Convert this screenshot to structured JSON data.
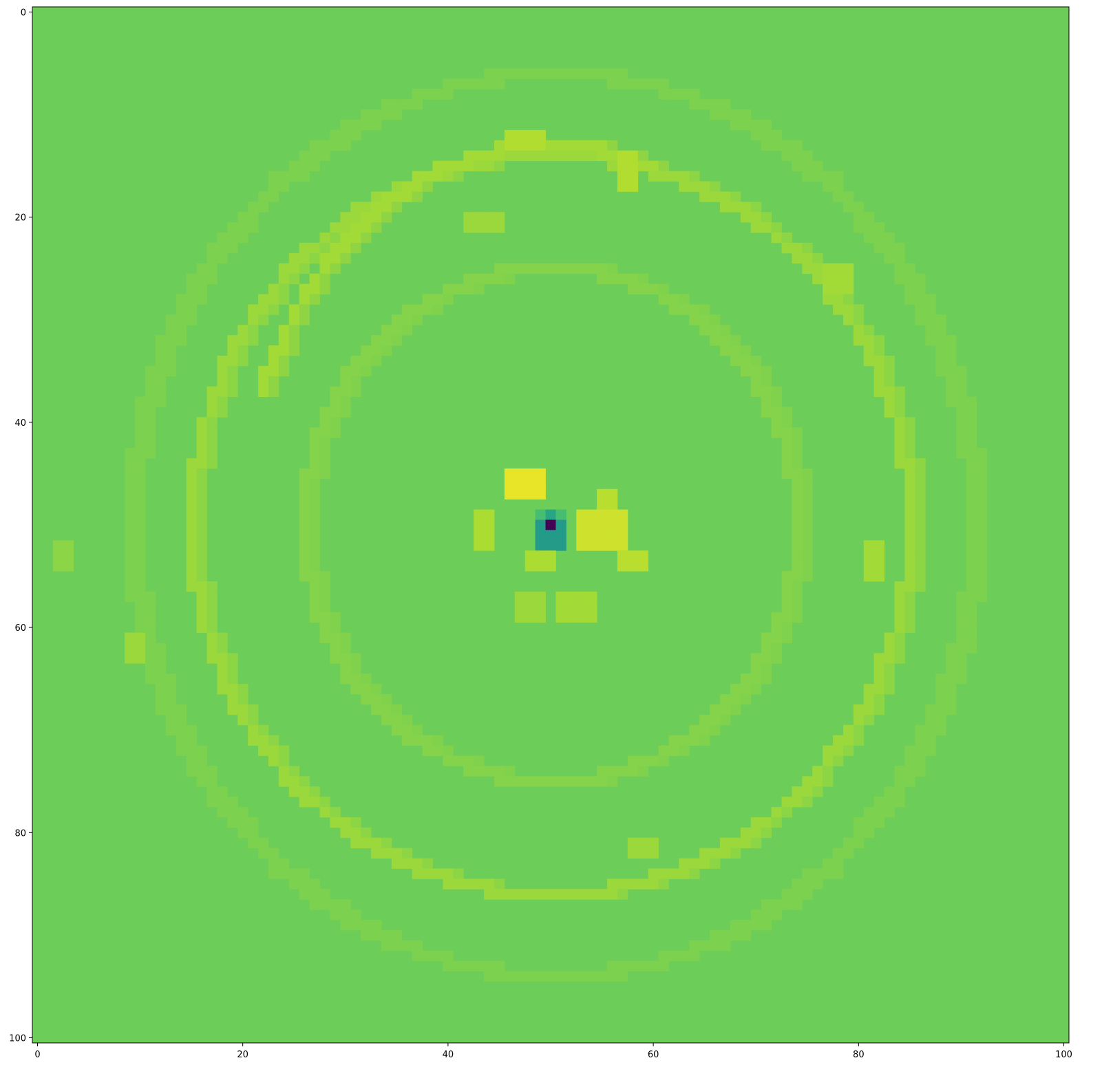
{
  "chart_data": {
    "type": "heatmap",
    "title": "",
    "xlabel": "",
    "ylabel": "",
    "grid": false,
    "colorbar": false,
    "colormap": "viridis",
    "origin": "upper",
    "size": [
      101,
      101
    ],
    "xlim": [
      -0.5,
      100.5
    ],
    "ylim": [
      100.5,
      -0.5
    ],
    "x_ticks": [
      0,
      20,
      40,
      60,
      80,
      100
    ],
    "y_ticks": [
      0,
      20,
      40,
      60,
      80,
      100
    ],
    "x_tick_labels": [
      "0",
      "20",
      "40",
      "60",
      "80",
      "100"
    ],
    "y_tick_labels": [
      "0",
      "20",
      "40",
      "60",
      "80",
      "100"
    ],
    "value_range": [
      0,
      1
    ],
    "background_value": 0.8,
    "features": [
      {
        "shape": "ring",
        "cx": 50,
        "cy": 50,
        "rx": 35,
        "ry": 36,
        "value": 0.86
      },
      {
        "shape": "ring",
        "cx": 50,
        "cy": 50,
        "rx": 24,
        "ry": 25,
        "value": 0.83
      },
      {
        "shape": "ring",
        "cx": 50,
        "cy": 50,
        "rx": 41,
        "ry": 44,
        "value": 0.82
      },
      {
        "shape": "arc",
        "cx": 50,
        "cy": 50,
        "rx": 30,
        "ry": 37,
        "a0": 200,
        "a1": 290,
        "value": 0.87
      },
      {
        "shape": "blob",
        "x": 46,
        "y": 45,
        "w": 3,
        "h": 2,
        "value": 0.97
      },
      {
        "shape": "blob",
        "x": 53,
        "y": 49,
        "w": 4,
        "h": 3,
        "value": 0.93
      },
      {
        "shape": "blob",
        "x": 57,
        "y": 53,
        "w": 2,
        "h": 1,
        "value": 0.9
      },
      {
        "shape": "blob",
        "x": 43,
        "y": 49,
        "w": 1,
        "h": 3,
        "value": 0.88
      },
      {
        "shape": "blob",
        "x": 48,
        "y": 53,
        "w": 2,
        "h": 1,
        "value": 0.88
      },
      {
        "shape": "blob",
        "x": 51,
        "y": 57,
        "w": 3,
        "h": 2,
        "value": 0.87
      },
      {
        "shape": "blob",
        "x": 47,
        "y": 57,
        "w": 2,
        "h": 2,
        "value": 0.86
      },
      {
        "shape": "blob",
        "x": 46,
        "y": 12,
        "w": 3,
        "h": 1,
        "value": 0.89
      },
      {
        "shape": "blob",
        "x": 57,
        "y": 14,
        "w": 1,
        "h": 3,
        "value": 0.89
      },
      {
        "shape": "blob",
        "x": 42,
        "y": 20,
        "w": 3,
        "h": 1,
        "value": 0.86
      },
      {
        "shape": "blob",
        "x": 77,
        "y": 25,
        "w": 2,
        "h": 2,
        "value": 0.87
      },
      {
        "shape": "blob",
        "x": 81,
        "y": 52,
        "w": 1,
        "h": 3,
        "value": 0.87
      },
      {
        "shape": "blob",
        "x": 58,
        "y": 81,
        "w": 2,
        "h": 1,
        "value": 0.86
      },
      {
        "shape": "blob",
        "x": 9,
        "y": 61,
        "w": 1,
        "h": 2,
        "value": 0.86
      },
      {
        "shape": "blob",
        "x": 2,
        "y": 52,
        "w": 1,
        "h": 2,
        "value": 0.84
      },
      {
        "shape": "blob",
        "x": 55,
        "y": 47,
        "w": 1,
        "h": 1,
        "value": 0.9
      },
      {
        "shape": "blob",
        "x": 49,
        "y": 50,
        "w": 2,
        "h": 2,
        "value": 0.55
      },
      {
        "shape": "blob",
        "x": 50,
        "y": 50,
        "w": 0,
        "h": 0,
        "value": 0.0
      }
    ]
  }
}
